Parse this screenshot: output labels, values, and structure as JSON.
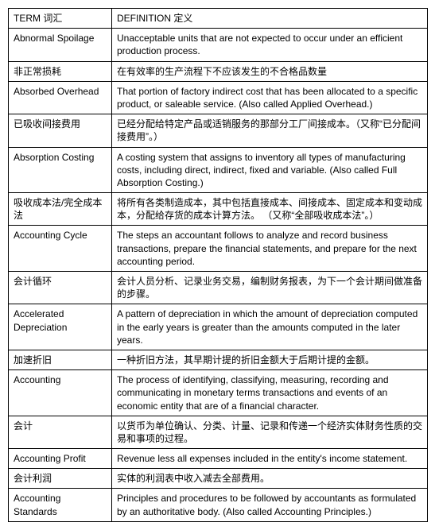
{
  "table": {
    "header": {
      "term": "TERM 词汇",
      "definition": "DEFINITION 定义"
    },
    "rows": [
      {
        "term": "Abnormal Spoilage",
        "definition": "Unacceptable units that are not expected to occur under an efficient production process."
      },
      {
        "term": "非正常损耗",
        "definition": "在有效率的生产流程下不应该发生的不合格品数量"
      },
      {
        "term": "Absorbed Overhead",
        "definition": "That portion of factory indirect cost that has been allocated to a specific product, or saleable service.  (Also called Applied Overhead.)"
      },
      {
        "term": "已吸收间接费用",
        "definition": "已经分配给特定产品或适销服务的那部分工厂间接成本。（又称“已分配间接费用”。）"
      },
      {
        "term": "Absorption Costing",
        "definition": "A costing system that assigns to inventory all types of manufacturing costs, including direct, indirect, fixed and variable.  (Also called Full Absorption Costing.)"
      },
      {
        "term": "吸收成本法/完全成本法",
        "definition": "将所有各类制造成本，其中包括直接成本、间接成本、固定成本和变动成本，分配给存货的成本计算方法。 （又称“全部吸收成本法”。）"
      },
      {
        "term": "Accounting Cycle",
        "definition": "The steps an accountant follows to analyze and record business transactions, prepare the financial statements, and prepare for the next accounting period."
      },
      {
        "term": "会计循环",
        "definition": "会计人员分析、记录业务交易，编制财务报表，为下一个会计期间做准备的步骤。"
      },
      {
        "term": "Accelerated Depreciation",
        "definition": "A pattern of depreciation in which the amount of depreciation computed in the early years is greater than the amounts computed in the later years."
      },
      {
        "term": "加速折旧",
        "definition": "一种折旧方法，其早期计提的折旧金额大于后期计提的金额。"
      },
      {
        "term": "Accounting",
        "definition": "The process of identifying, classifying, measuring, recording and communicating in monetary terms transactions and events of an economic entity that are of a financial character."
      },
      {
        "term": "会计",
        "definition": "以货币为单位确认、分类、计量、记录和传递一个经济实体财务性质的交易和事项的过程。"
      },
      {
        "term": "Accounting Profit",
        "definition": "Revenue less all expenses included in the entity's income statement."
      },
      {
        "term": "会计利润",
        "definition": "实体的利润表中收入减去全部费用。"
      },
      {
        "term": "Accounting Standards",
        "definition": "Principles and procedures to be followed by accountants as formulated by an authoritative body.  (Also called Accounting Principles.)"
      }
    ]
  }
}
